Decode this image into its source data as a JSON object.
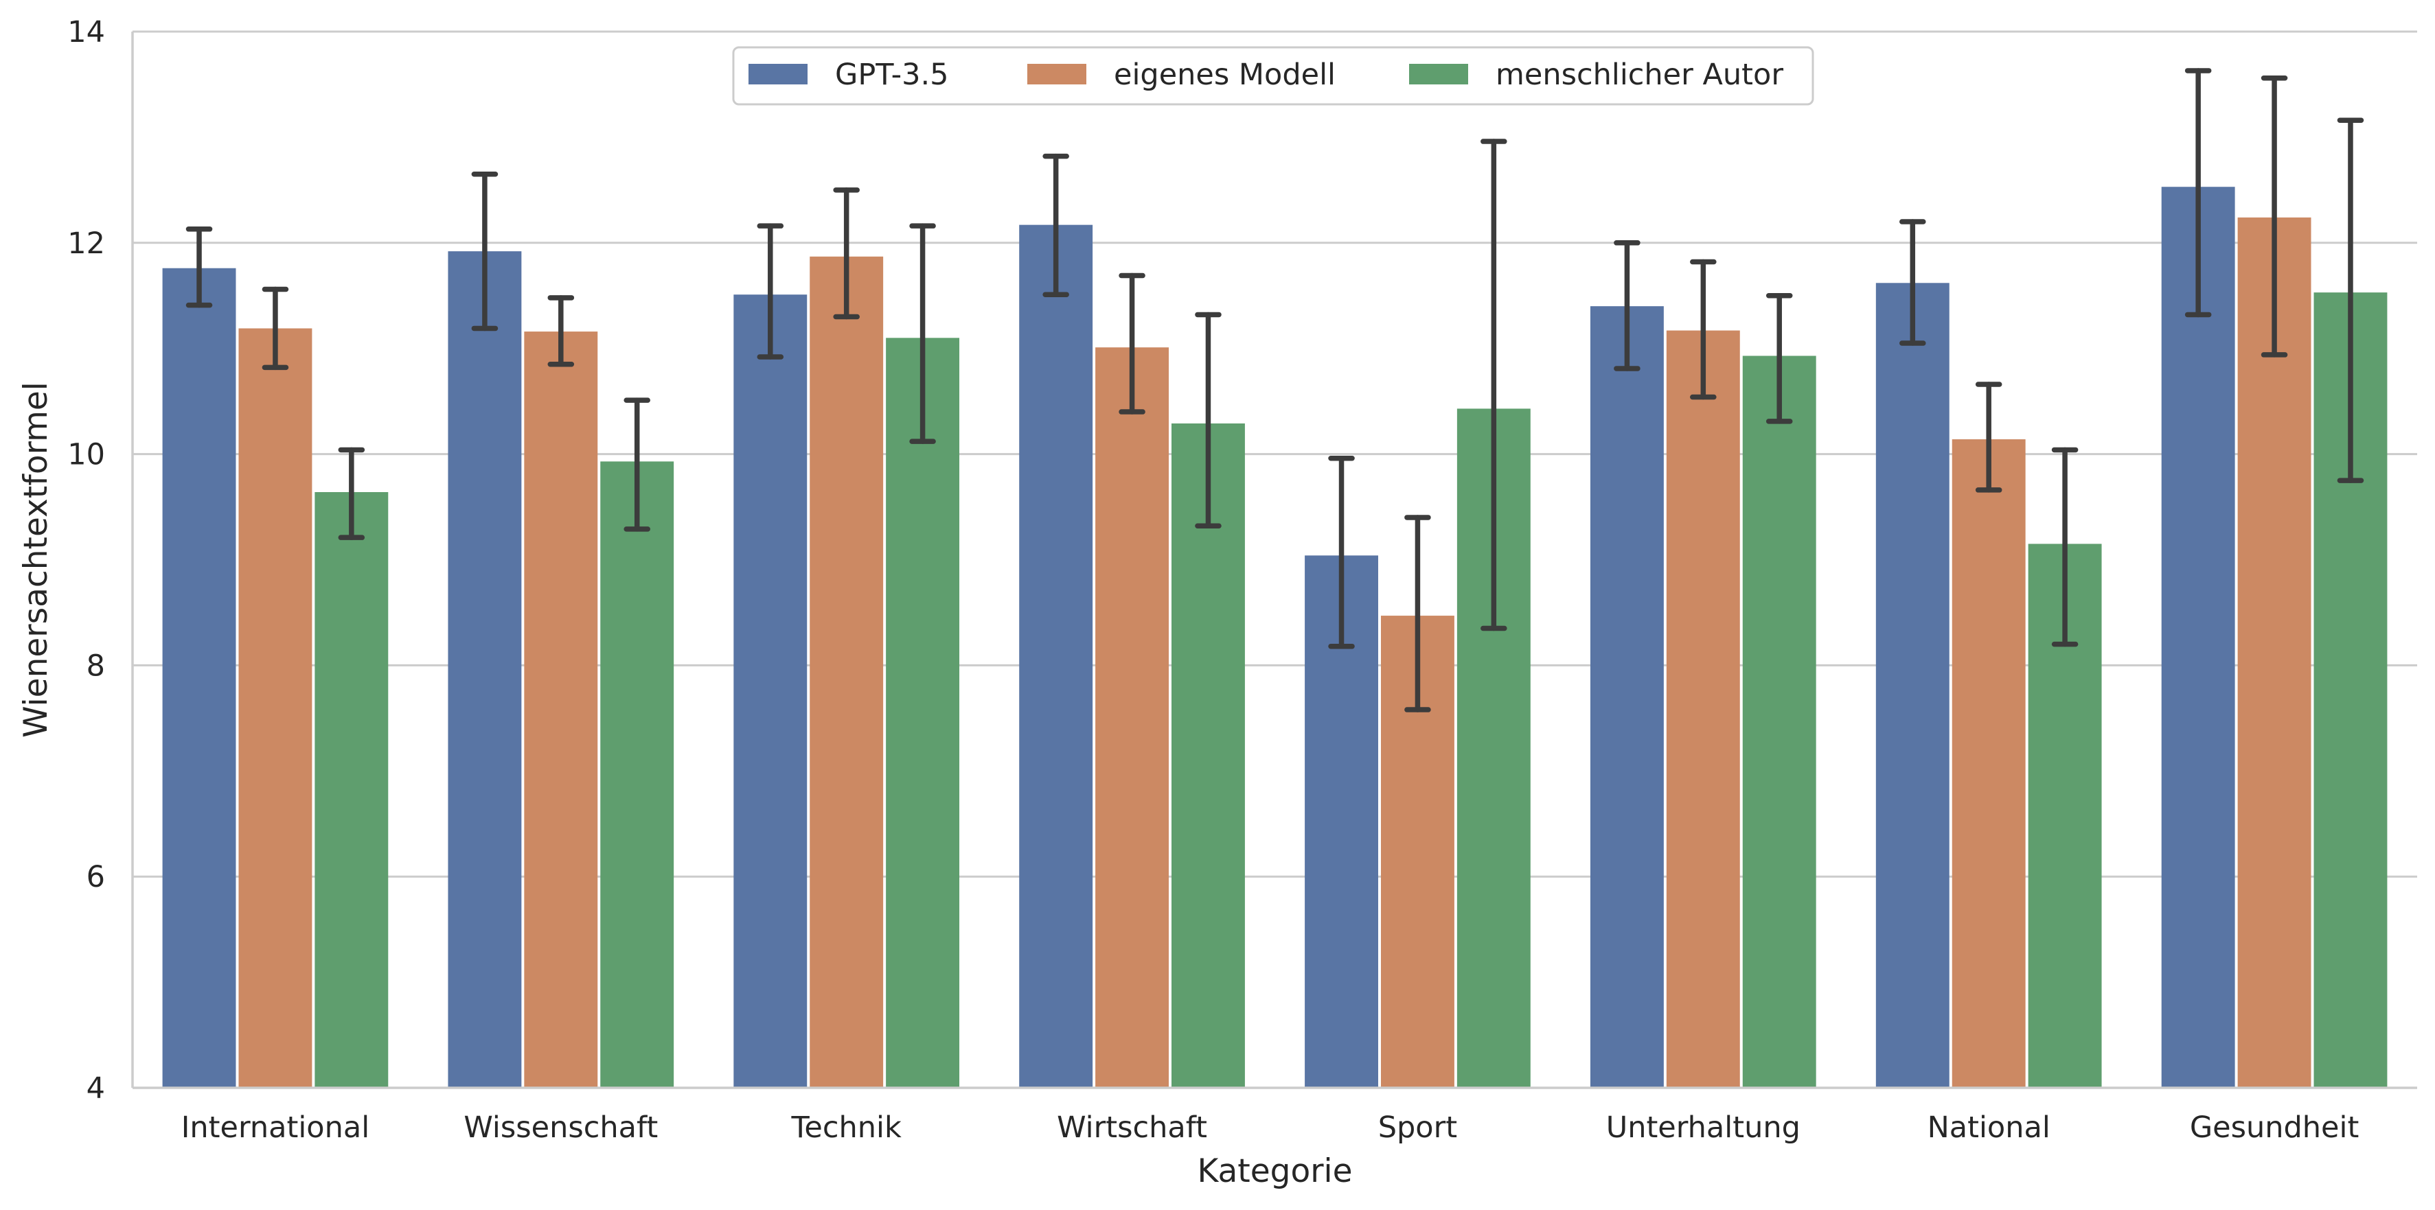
{
  "chart_data": {
    "type": "bar",
    "xlabel": "Kategorie",
    "ylabel": "Wienersachtextformel",
    "ylim": [
      4,
      14
    ],
    "yticks": [
      4,
      6,
      8,
      10,
      12,
      14
    ],
    "grid": "horizontal",
    "legend_position": "top-center",
    "categories": [
      "International",
      "Wissenschaft",
      "Technik",
      "Wirtschaft",
      "Sport",
      "Unterhaltung",
      "National",
      "Gesundheit"
    ],
    "series": [
      {
        "name": "GPT-3.5",
        "color": "#5975a4",
        "values": [
          11.76,
          11.92,
          11.51,
          12.17,
          9.04,
          11.4,
          11.62,
          12.53
        ],
        "err_low": [
          11.41,
          11.19,
          10.92,
          11.51,
          8.18,
          10.81,
          11.05,
          11.32
        ],
        "err_high": [
          12.13,
          12.65,
          12.16,
          12.82,
          9.96,
          12.0,
          12.2,
          13.63
        ]
      },
      {
        "name": "eigenes Modell",
        "color": "#cc8963",
        "values": [
          11.19,
          11.16,
          11.87,
          11.01,
          8.47,
          11.17,
          10.14,
          12.24
        ],
        "err_low": [
          10.82,
          10.85,
          11.3,
          10.4,
          7.58,
          10.54,
          9.66,
          10.94
        ],
        "err_high": [
          11.56,
          11.48,
          12.5,
          11.69,
          9.4,
          11.82,
          10.66,
          13.56
        ]
      },
      {
        "name": "menschlicher Autor",
        "color": "#5f9e6e",
        "values": [
          9.64,
          9.93,
          11.1,
          10.29,
          10.43,
          10.93,
          9.15,
          11.53
        ],
        "err_low": [
          9.21,
          9.29,
          10.12,
          9.32,
          8.35,
          10.31,
          8.2,
          9.75
        ],
        "err_high": [
          10.04,
          10.51,
          12.16,
          11.32,
          12.96,
          11.5,
          10.04,
          13.16
        ]
      }
    ]
  }
}
